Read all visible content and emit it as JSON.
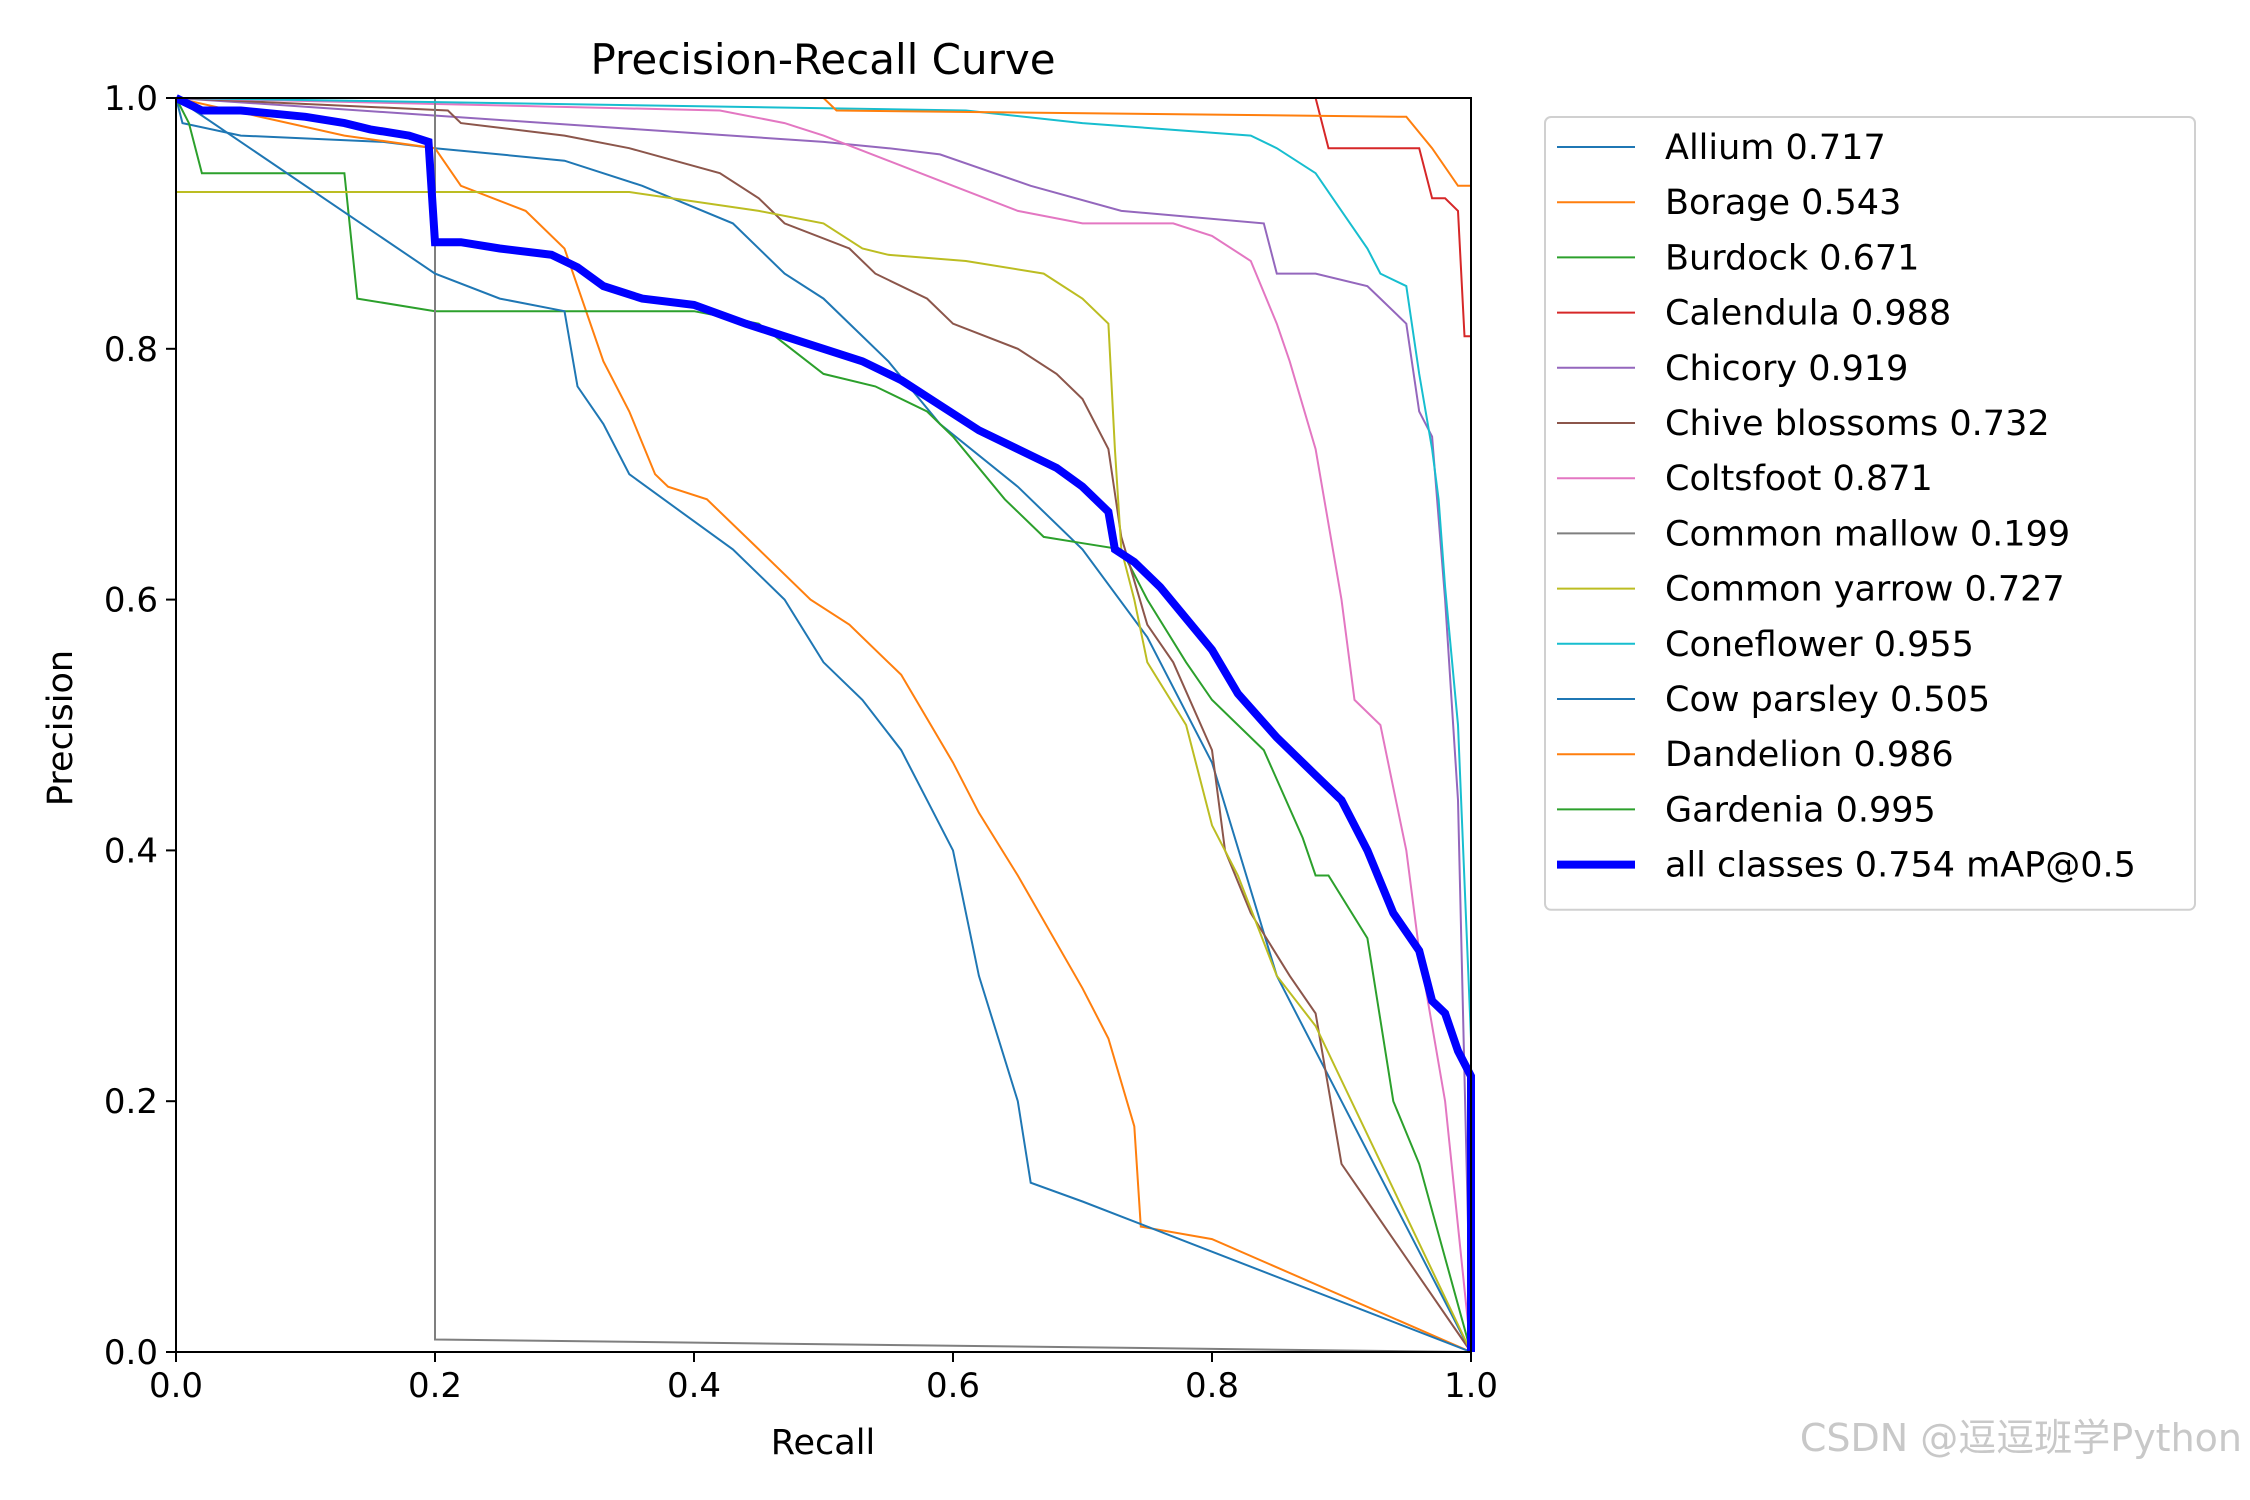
{
  "watermark": "CSDN @逗逗班学Python",
  "chart_data": {
    "type": "line",
    "title": "Precision-Recall Curve",
    "xlabel": "Recall",
    "ylabel": "Precision",
    "xlim": [
      0,
      1
    ],
    "ylim": [
      0,
      1
    ],
    "xticks": [
      "0.0",
      "0.2",
      "0.4",
      "0.6",
      "0.8",
      "1.0"
    ],
    "yticks": [
      "0.0",
      "0.2",
      "0.4",
      "0.6",
      "0.8",
      "1.0"
    ],
    "grid": false,
    "legend_position": "outside-right-top",
    "series": [
      {
        "name": "Allium 0.717",
        "color": "#1f77b4",
        "width": 2,
        "x": [
          0,
          0.005,
          0.05,
          0.16,
          0.2,
          0.25,
          0.3,
          0.36,
          0.43,
          0.47,
          0.5,
          0.55,
          0.59,
          0.65,
          0.7,
          0.75,
          0.8,
          0.85,
          0.9,
          0.95,
          1.0
        ],
        "y": [
          1.0,
          0.98,
          0.97,
          0.965,
          0.96,
          0.955,
          0.95,
          0.93,
          0.9,
          0.86,
          0.84,
          0.79,
          0.74,
          0.69,
          0.64,
          0.57,
          0.47,
          0.3,
          0.2,
          0.1,
          0.0
        ]
      },
      {
        "name": "Borage 0.543",
        "color": "#ff7f0e",
        "width": 2,
        "x": [
          0,
          0.13,
          0.2,
          0.22,
          0.27,
          0.3,
          0.33,
          0.35,
          0.37,
          0.38,
          0.41,
          0.45,
          0.49,
          0.52,
          0.56,
          0.6,
          0.62,
          0.65,
          0.7,
          0.72,
          0.74,
          0.745,
          0.8,
          1.0
        ],
        "y": [
          1.0,
          0.97,
          0.96,
          0.93,
          0.91,
          0.88,
          0.79,
          0.75,
          0.7,
          0.69,
          0.68,
          0.64,
          0.6,
          0.58,
          0.54,
          0.47,
          0.43,
          0.38,
          0.29,
          0.25,
          0.18,
          0.1,
          0.09,
          0.0
        ]
      },
      {
        "name": "Burdock 0.671",
        "color": "#2ca02c",
        "width": 2,
        "x": [
          0,
          0.01,
          0.02,
          0.13,
          0.14,
          0.2,
          0.4,
          0.45,
          0.5,
          0.54,
          0.58,
          0.6,
          0.64,
          0.67,
          0.7,
          0.73,
          0.75,
          0.78,
          0.8,
          0.84,
          0.87,
          0.88,
          0.89,
          0.92,
          0.94,
          0.96,
          1.0
        ],
        "y": [
          1.0,
          0.98,
          0.94,
          0.94,
          0.84,
          0.83,
          0.83,
          0.82,
          0.78,
          0.77,
          0.75,
          0.73,
          0.68,
          0.65,
          0.645,
          0.64,
          0.6,
          0.55,
          0.52,
          0.48,
          0.41,
          0.38,
          0.38,
          0.33,
          0.2,
          0.15,
          0.0
        ]
      },
      {
        "name": "Calendula 0.988",
        "color": "#d62728",
        "width": 2,
        "x": [
          0,
          0.88,
          0.89,
          0.96,
          0.97,
          0.98,
          0.99,
          0.995,
          1.0
        ],
        "y": [
          1.0,
          1.0,
          0.96,
          0.96,
          0.92,
          0.92,
          0.91,
          0.81,
          0.81
        ]
      },
      {
        "name": "Chicory 0.919",
        "color": "#9467bd",
        "width": 2,
        "x": [
          0,
          0.5,
          0.55,
          0.59,
          0.66,
          0.73,
          0.84,
          0.85,
          0.88,
          0.92,
          0.93,
          0.95,
          0.96,
          0.97,
          0.98,
          0.99,
          1.0
        ],
        "y": [
          1.0,
          0.965,
          0.96,
          0.955,
          0.93,
          0.91,
          0.9,
          0.86,
          0.86,
          0.85,
          0.84,
          0.82,
          0.75,
          0.73,
          0.6,
          0.44,
          0.0
        ]
      },
      {
        "name": "Chive blossoms 0.732",
        "color": "#8c564b",
        "width": 2,
        "x": [
          0,
          0.21,
          0.22,
          0.3,
          0.35,
          0.42,
          0.45,
          0.47,
          0.52,
          0.54,
          0.58,
          0.6,
          0.65,
          0.68,
          0.7,
          0.72,
          0.73,
          0.75,
          0.77,
          0.8,
          0.81,
          0.83,
          0.86,
          0.88,
          0.9,
          0.92,
          1.0
        ],
        "y": [
          1.0,
          0.99,
          0.98,
          0.97,
          0.96,
          0.94,
          0.92,
          0.9,
          0.88,
          0.86,
          0.84,
          0.82,
          0.8,
          0.78,
          0.76,
          0.72,
          0.65,
          0.58,
          0.55,
          0.48,
          0.4,
          0.35,
          0.3,
          0.27,
          0.15,
          0.12,
          0.0
        ]
      },
      {
        "name": "Coltsfoot 0.871",
        "color": "#e377c2",
        "width": 2,
        "x": [
          0,
          0.42,
          0.47,
          0.5,
          0.55,
          0.6,
          0.65,
          0.7,
          0.77,
          0.8,
          0.83,
          0.85,
          0.86,
          0.88,
          0.9,
          0.91,
          0.93,
          0.94,
          0.95,
          0.96,
          0.98,
          1.0
        ],
        "y": [
          1.0,
          0.99,
          0.98,
          0.97,
          0.95,
          0.93,
          0.91,
          0.9,
          0.9,
          0.89,
          0.87,
          0.82,
          0.79,
          0.72,
          0.6,
          0.52,
          0.5,
          0.45,
          0.4,
          0.32,
          0.2,
          0.0
        ]
      },
      {
        "name": "Common mallow 0.199",
        "color": "#7f7f7f",
        "width": 2,
        "x": [
          0.2,
          0.2,
          0.2,
          1.0
        ],
        "y": [
          1.0,
          0.5,
          0.01,
          0.0
        ]
      },
      {
        "name": "Common yarrow 0.727",
        "color": "#bcbd22",
        "width": 2,
        "x": [
          0,
          0.35,
          0.45,
          0.5,
          0.53,
          0.55,
          0.61,
          0.67,
          0.7,
          0.72,
          0.725,
          0.73,
          0.74,
          0.75,
          0.78,
          0.8,
          0.82,
          0.85,
          0.88,
          1.0
        ],
        "y": [
          0.925,
          0.925,
          0.91,
          0.9,
          0.88,
          0.875,
          0.87,
          0.86,
          0.84,
          0.82,
          0.72,
          0.64,
          0.6,
          0.55,
          0.5,
          0.42,
          0.38,
          0.3,
          0.26,
          0.0
        ]
      },
      {
        "name": "Coneflower 0.955",
        "color": "#17becf",
        "width": 2,
        "x": [
          0,
          0.61,
          0.7,
          0.83,
          0.85,
          0.88,
          0.9,
          0.92,
          0.93,
          0.95,
          0.96,
          0.97,
          0.975,
          0.98,
          0.99,
          1.0,
          1.0
        ],
        "y": [
          1.0,
          0.99,
          0.98,
          0.97,
          0.96,
          0.94,
          0.91,
          0.88,
          0.86,
          0.85,
          0.78,
          0.72,
          0.68,
          0.61,
          0.5,
          0.25,
          0.0
        ]
      },
      {
        "name": "Cow parsley 0.505",
        "color": "#1f77b4",
        "width": 2,
        "x": [
          0,
          0.2,
          0.25,
          0.3,
          0.31,
          0.33,
          0.35,
          0.39,
          0.43,
          0.47,
          0.5,
          0.53,
          0.56,
          0.58,
          0.6,
          0.62,
          0.65,
          0.66,
          0.7,
          0.8,
          1.0
        ],
        "y": [
          1.0,
          0.86,
          0.84,
          0.83,
          0.77,
          0.74,
          0.7,
          0.67,
          0.64,
          0.6,
          0.55,
          0.52,
          0.48,
          0.44,
          0.4,
          0.3,
          0.2,
          0.135,
          0.12,
          0.08,
          0.0
        ]
      },
      {
        "name": "Dandelion 0.986",
        "color": "#ff7f0e",
        "width": 2,
        "x": [
          0,
          0.5,
          0.51,
          0.95,
          0.97,
          0.99,
          1.0
        ],
        "y": [
          1.0,
          1.0,
          0.99,
          0.985,
          0.96,
          0.93,
          0.93
        ]
      },
      {
        "name": "Gardenia 0.995",
        "color": "#2ca02c",
        "width": 2,
        "x": [
          0,
          0.998,
          1.0,
          1.0
        ],
        "y": [
          1.0,
          1.0,
          1.0,
          0.0
        ]
      },
      {
        "name": "all classes 0.754 mAP@0.5",
        "color": "#0000ff",
        "width": 8,
        "x": [
          0,
          0.02,
          0.05,
          0.1,
          0.13,
          0.15,
          0.18,
          0.195,
          0.2,
          0.22,
          0.25,
          0.29,
          0.31,
          0.33,
          0.36,
          0.4,
          0.44,
          0.47,
          0.5,
          0.53,
          0.56,
          0.59,
          0.62,
          0.65,
          0.68,
          0.7,
          0.72,
          0.725,
          0.74,
          0.76,
          0.78,
          0.8,
          0.82,
          0.85,
          0.88,
          0.9,
          0.92,
          0.94,
          0.96,
          0.97,
          0.98,
          0.99,
          1.0,
          1.0
        ],
        "y": [
          1.0,
          0.99,
          0.99,
          0.985,
          0.98,
          0.975,
          0.97,
          0.965,
          0.885,
          0.885,
          0.88,
          0.875,
          0.865,
          0.85,
          0.84,
          0.835,
          0.82,
          0.81,
          0.8,
          0.79,
          0.775,
          0.755,
          0.735,
          0.72,
          0.705,
          0.69,
          0.67,
          0.64,
          0.63,
          0.61,
          0.585,
          0.56,
          0.525,
          0.49,
          0.46,
          0.44,
          0.4,
          0.35,
          0.32,
          0.28,
          0.27,
          0.24,
          0.22,
          0.0
        ]
      }
    ]
  }
}
